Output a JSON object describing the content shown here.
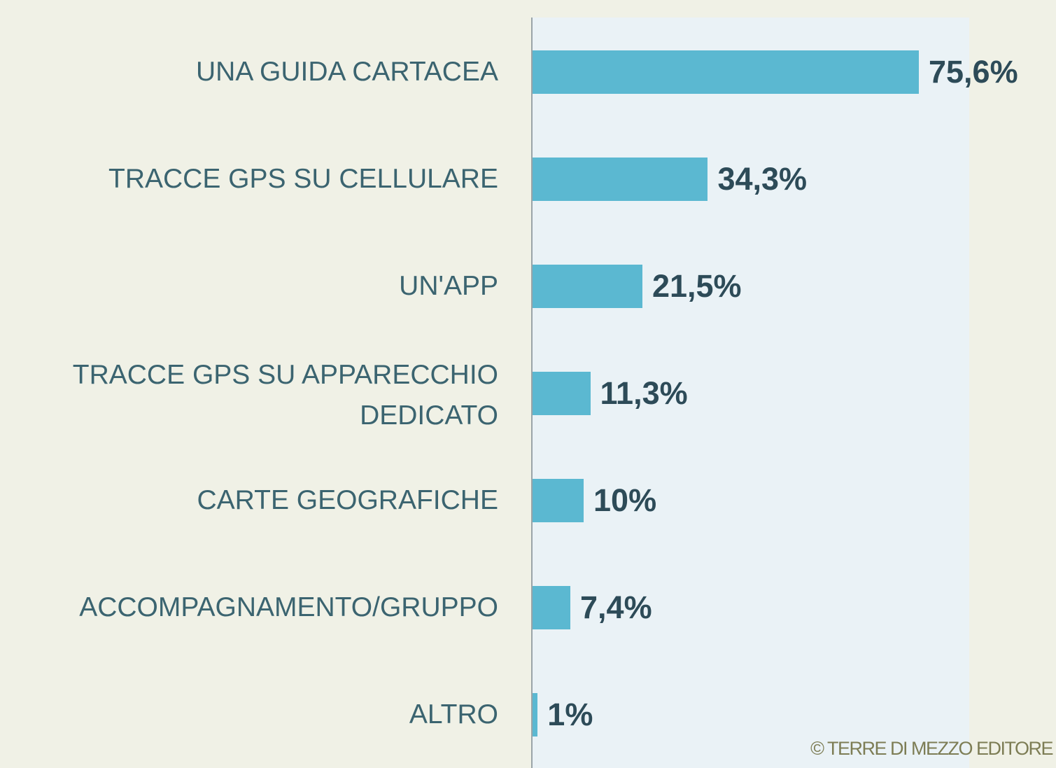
{
  "chart_data": {
    "type": "bar",
    "orientation": "horizontal",
    "categories": [
      "UNA GUIDA CARTACEA",
      "TRACCE GPS SU CELLULARE",
      "UN'APP",
      "TRACCE GPS SU APPARECCHIO DEDICATO",
      "CARTE GEOGRAFICHE",
      "ACCOMPAGNAMENTO/GRUPPO",
      "ALTRO"
    ],
    "values": [
      75.6,
      34.3,
      21.5,
      11.3,
      10,
      7.4,
      1
    ],
    "value_labels": [
      "75,6%",
      "34,3%",
      "21,5%",
      "11,3%",
      "10%",
      "7,4%",
      "1%"
    ],
    "color": "#5bb8d1",
    "credit": "© TERRE DI MEZZO EDITORE"
  }
}
